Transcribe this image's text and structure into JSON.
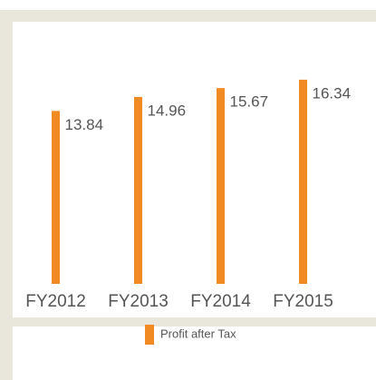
{
  "chart_data": {
    "type": "bar",
    "categories": [
      "FY2012",
      "FY2013",
      "FY2014",
      "FY2015"
    ],
    "series": [
      {
        "name": "Profit after Tax",
        "color": "#f28a24",
        "values": [
          13.84,
          14.96,
          15.67,
          16.34
        ]
      }
    ],
    "ylim": [
      0,
      18
    ]
  }
}
